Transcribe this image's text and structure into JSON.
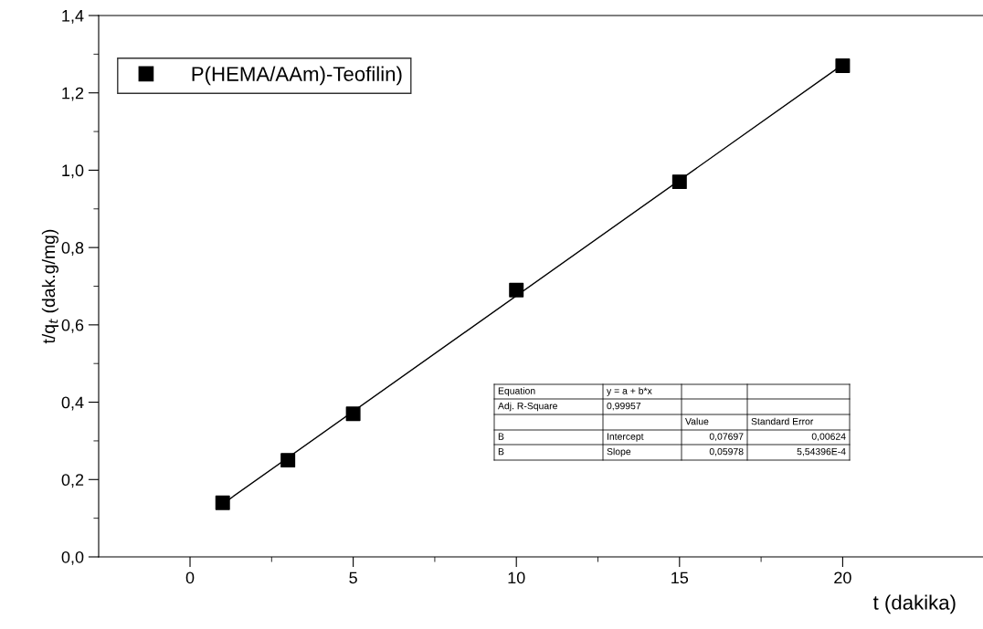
{
  "chart_data": {
    "type": "scatter",
    "xlabel": "t (dakika)",
    "ylabel": "t/q$_{t}$ (dak.g/mg)",
    "x": [
      1,
      3,
      5,
      10,
      15,
      20
    ],
    "series": [
      {
        "name": "P(HEMA/AAm)-Teofilin)",
        "color": "#000000",
        "marker": "square",
        "values": [
          0.14,
          0.25,
          0.37,
          0.69,
          0.97,
          1.27
        ]
      },
      {
        "type": "line",
        "color": "#000000",
        "x": [
          1,
          20
        ],
        "values": [
          0.137,
          1.273
        ],
        "line_style": "solid",
        "marker": "none"
      }
    ],
    "xlim": [
      -2.8,
      24.3
    ],
    "xticks": [
      0,
      5,
      10,
      15,
      20,
      {
        "value": 2.5,
        "label": null
      },
      {
        "value": 7.5,
        "label": null
      },
      {
        "value": 12.5,
        "label": null
      },
      {
        "value": 17.5,
        "label": null
      }
    ],
    "ylim": [
      0,
      1.4
    ],
    "yticks": [
      {
        "value": 0,
        "label": "0,0"
      },
      {
        "value": 0.2,
        "label": "0,2"
      },
      {
        "value": 0.4,
        "label": "0,4"
      },
      {
        "value": 0.6,
        "label": "0,6"
      },
      {
        "value": 0.8,
        "label": "0,8"
      },
      {
        "value": 1.0,
        "label": "1,0"
      },
      {
        "value": 1.2,
        "label": "1,2"
      },
      {
        "value": 1.4,
        "label": "1,4"
      },
      {
        "value": 0.1,
        "label": null
      },
      {
        "value": 0.3,
        "label": null
      },
      {
        "value": 0.5,
        "label": null
      },
      {
        "value": 0.7,
        "label": null
      },
      {
        "value": 0.9,
        "label": null
      },
      {
        "value": 1.1,
        "label": null
      },
      {
        "value": 1.3,
        "label": null
      }
    ],
    "grid": false,
    "legend": "top left",
    "annotations": [
      "Equation",
      "y = a + b*x",
      "Adj. R-Square",
      "0,99957",
      "Value",
      "Standard Error",
      "B",
      "Intercept",
      "0,07697",
      "0,00624",
      "B",
      "Slope",
      "0,05978",
      "5,54396E-4"
    ]
  }
}
